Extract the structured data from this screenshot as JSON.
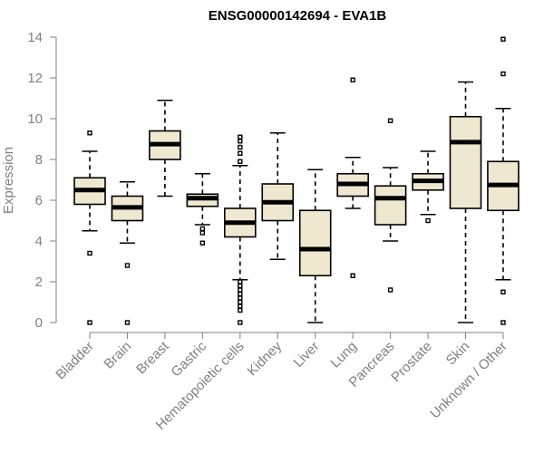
{
  "chart_data": {
    "type": "boxplot",
    "title": "ENSG00000142694 - EVA1B",
    "xlabel": "",
    "ylabel": "Expression",
    "ylim": [
      0,
      14
    ],
    "yticks": [
      0,
      2,
      4,
      6,
      8,
      10,
      12,
      14
    ],
    "categories": [
      "Bladder",
      "Brain",
      "Breast",
      "Gastric",
      "Hematopoietic cells",
      "Kidney",
      "Liver",
      "Lung",
      "Pancreas",
      "Prostate",
      "Skin",
      "Unknown / Other"
    ],
    "boxes": [
      {
        "category": "Bladder",
        "min": 4.5,
        "q1": 5.8,
        "median": 6.5,
        "q3": 7.1,
        "max": 8.4,
        "outliers": [
          0.0,
          3.4,
          9.3
        ]
      },
      {
        "category": "Brain",
        "min": 3.9,
        "q1": 5.0,
        "median": 5.65,
        "q3": 6.2,
        "max": 6.9,
        "outliers": [
          0.0,
          2.8
        ]
      },
      {
        "category": "Breast",
        "min": 6.2,
        "q1": 8.0,
        "median": 8.75,
        "q3": 9.4,
        "max": 10.9,
        "outliers": []
      },
      {
        "category": "Gastric",
        "min": 4.8,
        "q1": 5.7,
        "median": 6.1,
        "q3": 6.3,
        "max": 7.3,
        "outliers": [
          3.9,
          4.4,
          4.6
        ]
      },
      {
        "category": "Hematopoietic cells",
        "min": 2.1,
        "q1": 4.2,
        "median": 4.9,
        "q3": 5.6,
        "max": 7.7,
        "outliers": [
          0.0,
          0.6,
          0.8,
          1.0,
          1.2,
          1.4,
          1.6,
          1.8,
          2.0,
          7.9,
          8.3,
          8.6,
          8.9,
          9.1
        ]
      },
      {
        "category": "Kidney",
        "min": 3.1,
        "q1": 5.0,
        "median": 5.9,
        "q3": 6.8,
        "max": 9.3,
        "outliers": []
      },
      {
        "category": "Liver",
        "min": 0.0,
        "q1": 2.3,
        "median": 3.6,
        "q3": 5.5,
        "max": 7.5,
        "outliers": []
      },
      {
        "category": "Lung",
        "min": 5.6,
        "q1": 6.2,
        "median": 6.8,
        "q3": 7.3,
        "max": 8.1,
        "outliers": [
          2.3,
          11.9
        ]
      },
      {
        "category": "Pancreas",
        "min": 4.0,
        "q1": 4.8,
        "median": 6.1,
        "q3": 6.7,
        "max": 7.6,
        "outliers": [
          1.6,
          9.9
        ]
      },
      {
        "category": "Prostate",
        "min": 5.3,
        "q1": 6.5,
        "median": 6.95,
        "q3": 7.3,
        "max": 8.4,
        "outliers": [
          5.0
        ]
      },
      {
        "category": "Skin",
        "min": 0.0,
        "q1": 5.6,
        "median": 8.85,
        "q3": 10.1,
        "max": 11.8,
        "outliers": []
      },
      {
        "category": "Unknown / Other",
        "min": 2.1,
        "q1": 5.5,
        "median": 6.75,
        "q3": 7.9,
        "max": 10.5,
        "outliers": [
          0.0,
          1.5,
          12.2,
          13.9
        ]
      }
    ],
    "colors": {
      "box_fill": "#efe8d1",
      "box_stroke": "#000000",
      "axis": "#808080",
      "title": "#000000"
    }
  }
}
